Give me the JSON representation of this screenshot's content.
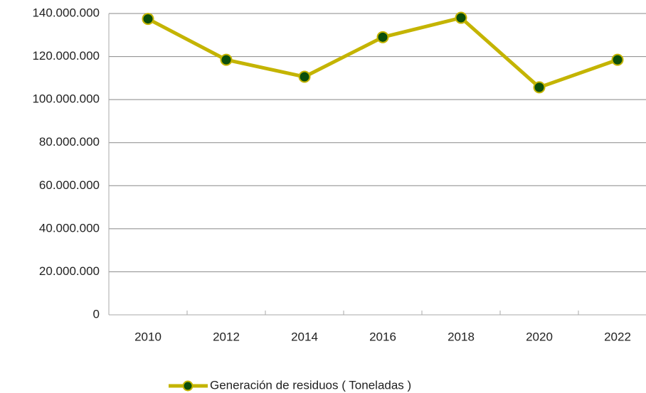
{
  "chart_data": {
    "type": "line",
    "categories": [
      "2010",
      "2012",
      "2014",
      "2016",
      "2018",
      "2020",
      "2022"
    ],
    "series": [
      {
        "name": "Generación de residuos ( Toneladas )",
        "color": "#c4b400",
        "marker_color": "#0b4f0b",
        "values": [
          137500000,
          118500000,
          110600000,
          129000000,
          138000000,
          105700000,
          118500000
        ]
      }
    ],
    "ylim": [
      0,
      140000000
    ],
    "yticks": [
      0,
      {
        "value": 20000000,
        "label": "20.000.000"
      },
      {
        "value": 40000000,
        "label": "40.000.000"
      },
      {
        "value": 60000000,
        "label": "60.000.000"
      },
      {
        "value": 80000000,
        "label": "80.000.000"
      },
      {
        "value": 100000000,
        "label": "100.000.000"
      },
      {
        "value": 120000000,
        "label": "120.000.000"
      },
      {
        "value": 140000000,
        "label": "140.000.000"
      }
    ],
    "grid": true,
    "legend": "bottom"
  }
}
